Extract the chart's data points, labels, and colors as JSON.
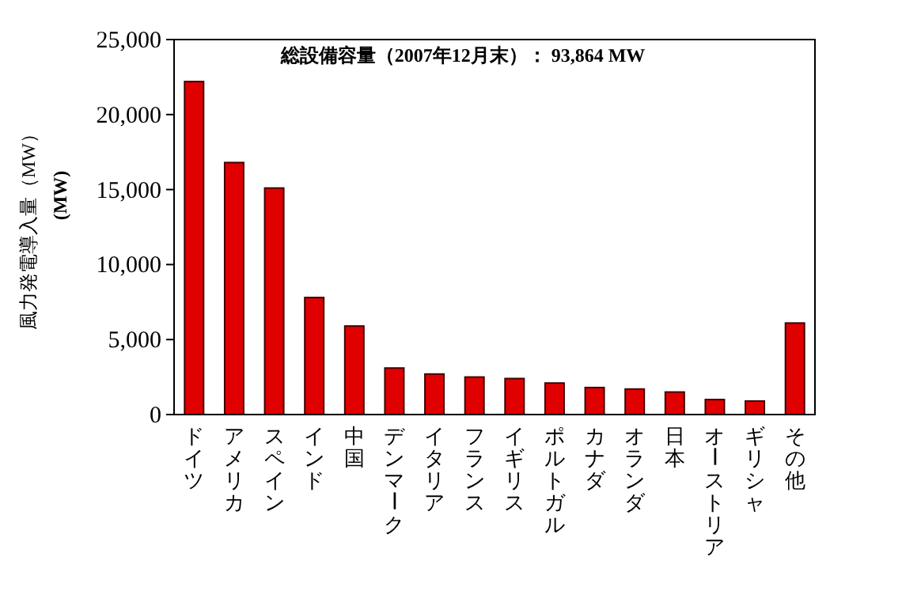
{
  "chart_data": {
    "type": "bar",
    "title": "総設備容量（2007年12月末）： 93,864 MW",
    "ylabel": "風力発電導入量（MW）",
    "annotations": [
      "(MW)"
    ],
    "categories": [
      "ドイツ",
      "アメリカ",
      "スペイン",
      "インド",
      "中国",
      "デンマーク",
      "イタリア",
      "フランス",
      "イギリス",
      "ポルトガル",
      "カナダ",
      "オランダ",
      "日本",
      "オーストリア",
      "ギリシャ",
      "その他"
    ],
    "values": [
      22200,
      16800,
      15100,
      7800,
      5900,
      3100,
      2700,
      2500,
      2400,
      2100,
      1800,
      1700,
      1500,
      1000,
      900,
      6100
    ],
    "color": "#e00000",
    "ylim": [
      0,
      25000
    ],
    "yticks": [
      {
        "value": 0,
        "label": "0"
      },
      {
        "value": 5000,
        "label": "5,000"
      },
      {
        "value": 10000,
        "label": "10,000"
      },
      {
        "value": 15000,
        "label": "15,000"
      },
      {
        "value": 20000,
        "label": "20,000"
      },
      {
        "value": 25000,
        "label": "25,000"
      }
    ],
    "grid": false
  }
}
